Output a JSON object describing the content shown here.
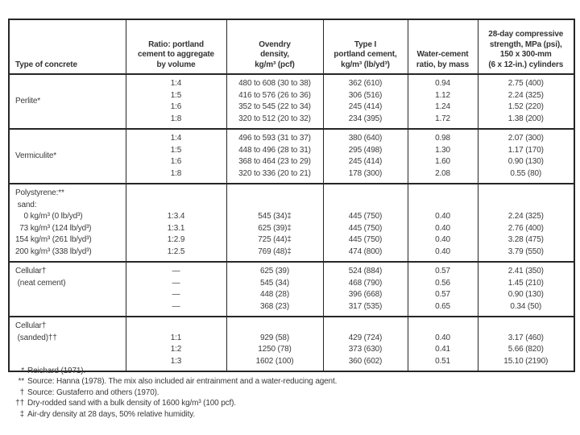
{
  "colors": {
    "background": "#ffffff",
    "text": "#3a3a3a",
    "border": "#262626"
  },
  "table": {
    "headers": [
      {
        "lines": [
          "Type of concrete"
        ],
        "align": "left"
      },
      {
        "lines": [
          "Ratio: portland",
          "cement to aggregate",
          "by volume"
        ],
        "align": "center"
      },
      {
        "lines": [
          "Ovendry",
          "density,",
          "kg/m³ (pcf)"
        ],
        "align": "center"
      },
      {
        "lines": [
          "Type I",
          "portland cement,",
          "kg/m³ (lb/yd³)"
        ],
        "align": "center"
      },
      {
        "lines": [
          "Water-cement",
          "ratio, by mass"
        ],
        "align": "center"
      },
      {
        "lines": [
          "28-day compressive",
          "strength, MPa (psi),",
          "150 x 300-mm",
          "(6 x 12-in.) cylinders"
        ],
        "align": "center"
      }
    ],
    "sections": [
      {
        "name": "perlite",
        "label_lines": [
          "Perlite*"
        ],
        "label_valign": "center",
        "ratio": [
          "1:4",
          "1:5",
          "1:6",
          "1:8"
        ],
        "density": [
          "480 to 608 (30 to 38)",
          "416 to 576 (26 to 36)",
          "352 to 545 (22 to 34)",
          "320 to 512 (20 to 32)"
        ],
        "cement": [
          "362 (610)",
          "306 (516)",
          "245 (414)",
          "234 (395)"
        ],
        "water_cement": [
          "0.94",
          "1.12",
          "1.24",
          "1.72"
        ],
        "strength": [
          "2.75 (400)",
          "2.24 (325)",
          "1.52 (220)",
          "1.38 (200)"
        ]
      },
      {
        "name": "vermiculite",
        "label_lines": [
          "Vermiculite*"
        ],
        "label_valign": "center",
        "ratio": [
          "1:4",
          "1:5",
          "1:6",
          "1:8"
        ],
        "density": [
          "496 to 593 (31 to 37)",
          "448 to 496 (28 to 31)",
          "368 to 464 (23 to 29)",
          "320 to 336 (20 to 21)"
        ],
        "cement": [
          "380 (640)",
          "295 (498)",
          "245 (414)",
          "178 (300)"
        ],
        "water_cement": [
          "0.98",
          "1.30",
          "1.60",
          "2.08"
        ],
        "strength": [
          "2.07 (300)",
          "1.17 (170)",
          "0.90 (130)",
          "0.55 (80)"
        ]
      },
      {
        "name": "polystyrene",
        "label_lines": [
          "Polystyrene:**",
          " sand:",
          "    0 kg/m³ (0 lb/yd³)",
          "  73 kg/m³ (124 lb/yd³)",
          "154 kg/m³ (261 lb/yd³)",
          "200 kg/m³ (338 lb/yd³)"
        ],
        "label_valign": "top",
        "ratio": [
          "",
          "",
          "1:3.4",
          "1:3.1",
          "1:2.9",
          "1:2.5"
        ],
        "density": [
          "",
          "",
          "545 (34)‡",
          "625 (39)‡",
          "725 (44)‡",
          "769 (48)‡"
        ],
        "cement": [
          "",
          "",
          "445 (750)",
          "445 (750)",
          "445 (750)",
          "474 (800)"
        ],
        "water_cement": [
          "",
          "",
          "0.40",
          "0.40",
          "0.40",
          "0.40"
        ],
        "strength": [
          "",
          "",
          "2.24 (325)",
          "2.76 (400)",
          "3.28 (475)",
          "3.79 (550)"
        ]
      },
      {
        "name": "cellular-neat",
        "label_lines": [
          "Cellular†",
          " (neat cement)"
        ],
        "label_valign": "top",
        "ratio": [
          "—",
          "—",
          "—",
          "—"
        ],
        "density": [
          "625 (39)",
          "545 (34)",
          "448 (28)",
          "368 (23)"
        ],
        "cement": [
          "524 (884)",
          "468 (790)",
          "396 (668)",
          "317 (535)"
        ],
        "water_cement": [
          "0.57",
          "0.56",
          "0.57",
          "0.65"
        ],
        "strength": [
          "2.41 (350)",
          "1.45 (210)",
          "0.90 (130)",
          "0.34 (50)"
        ]
      },
      {
        "name": "cellular-sanded",
        "label_lines": [
          "Cellular†",
          " (sanded)††"
        ],
        "label_valign": "top",
        "ratio": [
          "",
          "1:1",
          "1:2",
          "1:3"
        ],
        "density": [
          "",
          "929 (58)",
          "1250 (78)",
          "1602 (100)"
        ],
        "cement": [
          "",
          "429 (724)",
          "373 (630)",
          "360 (602)"
        ],
        "water_cement": [
          "",
          "0.40",
          "0.41",
          "0.51"
        ],
        "strength": [
          "",
          "3.17 (460)",
          "5.66 (820)",
          "15.10 (2190)"
        ]
      }
    ],
    "footnotes": [
      {
        "marker": "*",
        "text": "Reichard (1971)."
      },
      {
        "marker": "**",
        "text": "Source: Hanna (1978). The mix also included air entrainment and a water-reducing agent."
      },
      {
        "marker": "†",
        "text": "Source: Gustaferro and others (1970)."
      },
      {
        "marker": "††",
        "text": "Dry-rodded sand with a bulk density of 1600 kg/m³ (100 pcf)."
      },
      {
        "marker": "‡",
        "text": "Air-dry density at 28 days, 50% relative humidity."
      }
    ]
  }
}
